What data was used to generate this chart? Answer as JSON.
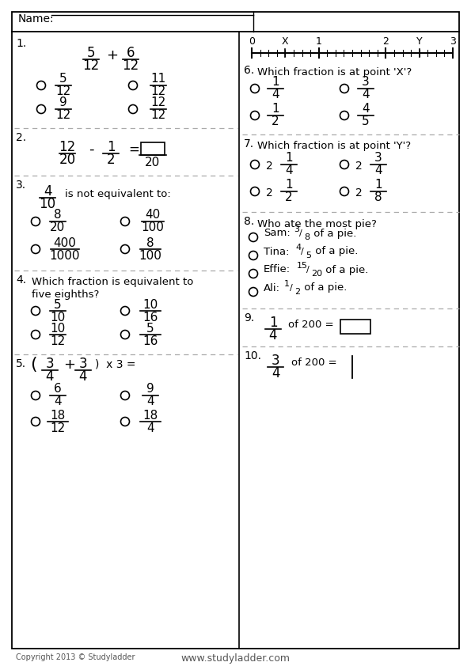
{
  "name_label": "Name:",
  "footer_left": "Copyright 2013 © Studyladder",
  "footer_right": "www.studyladder.com",
  "bg_color": "#ffffff",
  "text_color": "#000000",
  "dashed_color": "#aaaaaa"
}
